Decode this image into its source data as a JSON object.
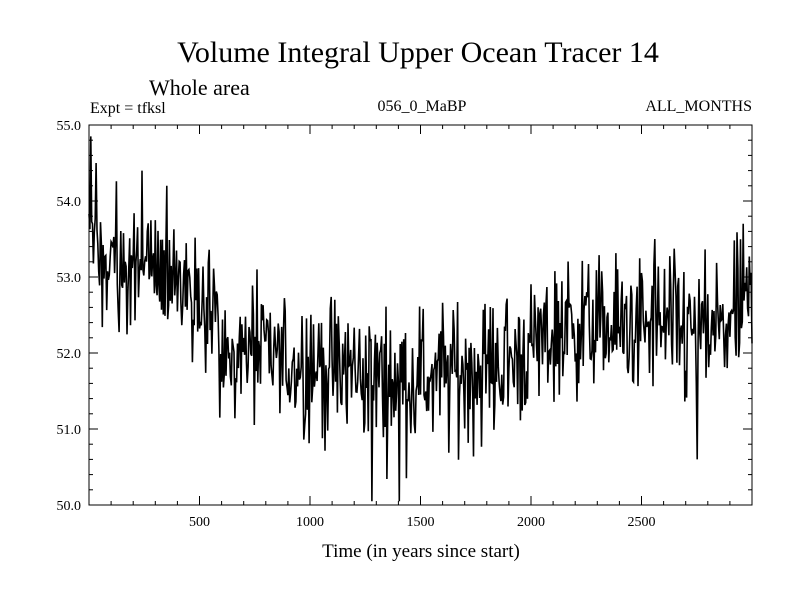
{
  "chart_data": {
    "type": "line",
    "title": "Volume Integral Upper Ocean Tracer 14",
    "subtitle": "Whole area",
    "experiment": "Expt = tfksl",
    "period": "056_0_MaBP",
    "months": "ALL_MONTHS",
    "xlabel": "Time (in years since start)",
    "ylabel": "",
    "xlim": [
      0,
      3000
    ],
    "ylim": [
      50.0,
      55.0
    ],
    "x_ticks": [
      500,
      1000,
      1500,
      2000,
      2500
    ],
    "x_tick_labels": [
      "500",
      "1000",
      "1500",
      "2000",
      "2500"
    ],
    "y_ticks": [
      50.0,
      51.0,
      52.0,
      53.0,
      54.0,
      55.0
    ],
    "y_tick_labels": [
      "50.0",
      "51.0",
      "52.0",
      "53.0",
      "54.0",
      "55.0"
    ],
    "grid": false,
    "series": [
      {
        "name": "Volume Integral Upper Ocean Tracer 14",
        "color": "#000000",
        "sample_interval_years": 4,
        "trend_x": [
          0,
          20,
          60,
          100,
          200,
          300,
          400,
          500,
          560,
          600,
          700,
          800,
          1000,
          1200,
          1400,
          1600,
          1800,
          1950,
          2000,
          2100,
          2200,
          2400,
          2600,
          2800,
          3000
        ],
        "trend_y": [
          53.7,
          53.4,
          53.2,
          53.1,
          53.1,
          53.15,
          53.0,
          52.8,
          52.7,
          51.9,
          52.0,
          51.95,
          51.85,
          51.75,
          51.65,
          51.7,
          51.8,
          51.95,
          52.05,
          52.25,
          52.4,
          52.3,
          52.35,
          52.2,
          52.6
        ],
        "noise_amplitude": 0.45,
        "spikes_x": [
          8,
          30,
          240,
          350,
          590,
          760,
          1280,
          1405,
          2560,
          2750,
          2960
        ],
        "spikes_y": [
          54.85,
          54.5,
          54.4,
          54.2,
          51.15,
          53.1,
          50.05,
          50.05,
          53.5,
          50.6,
          53.7
        ]
      }
    ]
  }
}
